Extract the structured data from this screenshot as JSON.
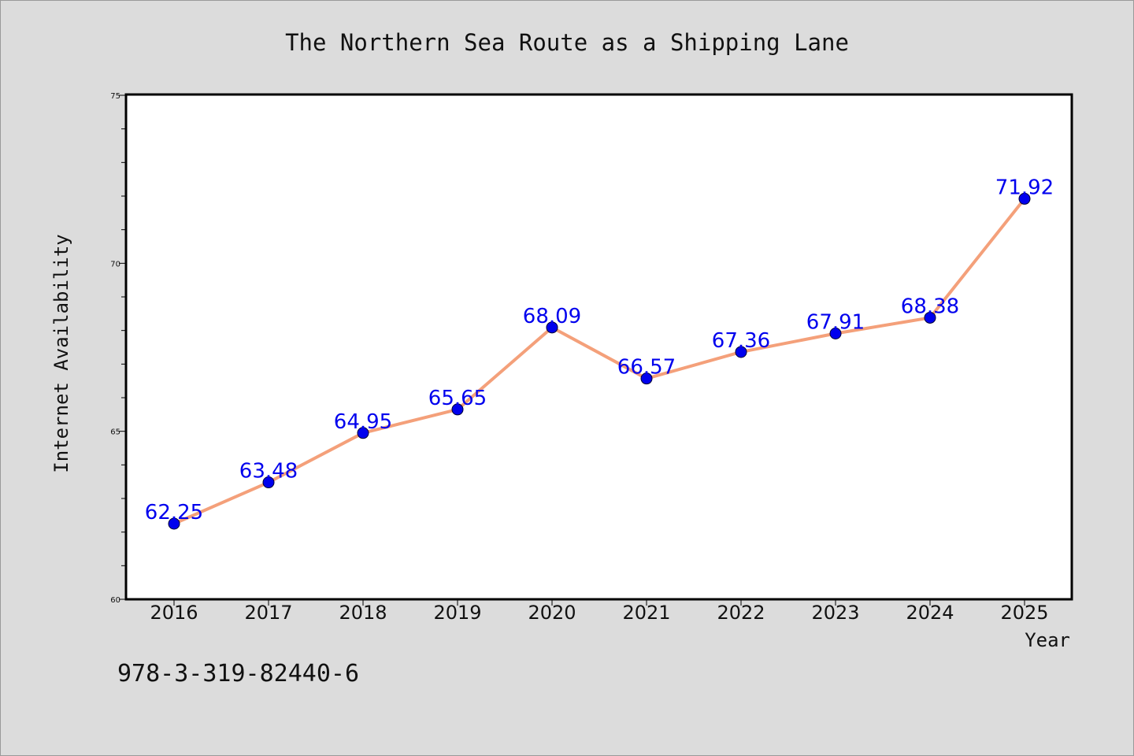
{
  "chart_data": {
    "type": "line",
    "title": "The Northern Sea Route as a Shipping Lane",
    "xlabel": "Year",
    "ylabel": "Internet Availability",
    "categories": [
      "2016",
      "2017",
      "2018",
      "2019",
      "2020",
      "2021",
      "2022",
      "2023",
      "2024",
      "2025"
    ],
    "series": [
      {
        "values": [
          62.25,
          63.48,
          64.95,
          65.65,
          68.09,
          66.57,
          67.36,
          67.91,
          68.38,
          71.92
        ],
        "labels": [
          "62.25",
          "63.48",
          "64.95",
          "65.65",
          "68.09",
          "66.57",
          "67.36",
          "67.91",
          "68.38",
          "71.92"
        ]
      }
    ],
    "ylim": [
      60,
      75
    ],
    "yticks": [
      60,
      65,
      70,
      75
    ],
    "ytick_labels": [
      "60",
      "65",
      "70",
      "75"
    ],
    "y_minor_step": 1,
    "grid": false,
    "legend": "none",
    "colors": {
      "line": "#f4a07a",
      "marker": "#0000ee",
      "data_label": "#0000ee",
      "plot_background": "#ffffff",
      "page_background": "#dcdcdc"
    }
  },
  "footer": {
    "isbn": "978-3-319-82440-6"
  }
}
